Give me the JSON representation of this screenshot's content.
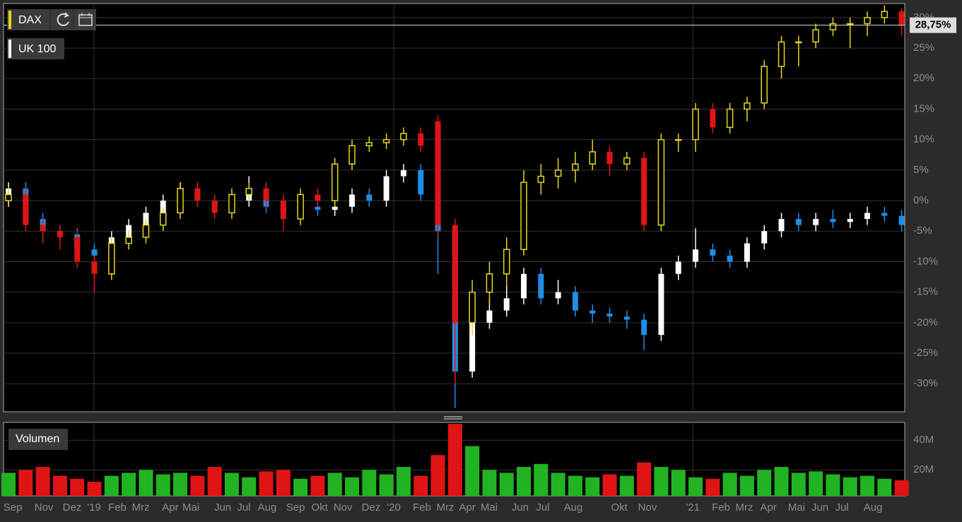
{
  "chart_data": {
    "type": "candlestick",
    "xlim": [
      -0.29,
      52.18
    ],
    "xticks": [
      {
        "value": 0.25,
        "label": "Sep"
      },
      {
        "value": 2.06,
        "label": "Nov"
      },
      {
        "value": 3.7,
        "label": "Dez"
      },
      {
        "value": 4.98,
        "label": "'19"
      },
      {
        "value": 6.34,
        "label": "Feb"
      },
      {
        "value": 7.7,
        "label": "Mrz"
      },
      {
        "value": 9.42,
        "label": "Apr"
      },
      {
        "value": 10.62,
        "label": "Mai"
      },
      {
        "value": 12.47,
        "label": "Jun"
      },
      {
        "value": 13.7,
        "label": "Jul"
      },
      {
        "value": 15.06,
        "label": "Aug"
      },
      {
        "value": 16.71,
        "label": "Sep"
      },
      {
        "value": 18.11,
        "label": "Okt"
      },
      {
        "value": 19.47,
        "label": "Nov"
      },
      {
        "value": 21.11,
        "label": "Dez"
      },
      {
        "value": 22.43,
        "label": "'20"
      },
      {
        "value": 24.07,
        "label": "Feb"
      },
      {
        "value": 25.43,
        "label": "Mrz"
      },
      {
        "value": 26.71,
        "label": "Apr"
      },
      {
        "value": 27.98,
        "label": "Mai"
      },
      {
        "value": 29.79,
        "label": "Jun"
      },
      {
        "value": 31.11,
        "label": "Jul"
      },
      {
        "value": 32.88,
        "label": "Aug"
      },
      {
        "value": 35.56,
        "label": "Okt"
      },
      {
        "value": 37.2,
        "label": "Nov"
      },
      {
        "value": 39.84,
        "label": "'21"
      },
      {
        "value": 41.48,
        "label": "Feb"
      },
      {
        "value": 42.84,
        "label": "Mrz"
      },
      {
        "value": 44.24,
        "label": "Apr"
      },
      {
        "value": 45.88,
        "label": "Mai"
      },
      {
        "value": 47.24,
        "label": "Jun"
      },
      {
        "value": 48.52,
        "label": "Jul"
      },
      {
        "value": 50.33,
        "label": "Aug"
      }
    ],
    "ylim": [
      -34.6,
      32.3
    ],
    "yticks": [
      {
        "value": -30,
        "label": "-30%"
      },
      {
        "value": -25,
        "label": "-25%"
      },
      {
        "value": -20,
        "label": "-20%"
      },
      {
        "value": -15,
        "label": "-15%"
      },
      {
        "value": -10,
        "label": "-10%"
      },
      {
        "value": -5,
        "label": "-5%"
      },
      {
        "value": 0,
        "label": "0%"
      },
      {
        "value": 5,
        "label": "5%"
      },
      {
        "value": 10,
        "label": "10%"
      },
      {
        "value": 15,
        "label": "15%"
      },
      {
        "value": 20,
        "label": "20%"
      },
      {
        "value": 25,
        "label": "25%"
      },
      {
        "value": 30,
        "label": "30%"
      }
    ],
    "grid": true,
    "series": [
      {
        "name": "UK 100",
        "color": "#ffffff",
        "up_color": "#ffffff",
        "down_color": "#1e8ee6",
        "open": [
          0,
          2,
          -3,
          -5,
          -5.5,
          -8,
          -9,
          -6,
          -4,
          -2,
          0,
          2,
          0,
          -1,
          0,
          2,
          -1,
          -2,
          -1,
          -1.5,
          -1,
          1,
          0,
          4,
          5,
          1,
          -5,
          -28,
          -20,
          -18,
          -16,
          -12,
          -16,
          -15,
          -18,
          -18.5,
          -19,
          -19.5,
          -22,
          -12,
          -10,
          -8,
          -9,
          -10,
          -7,
          -5,
          -3,
          -4,
          -3,
          -3.5,
          -3,
          -2,
          -2.5
        ],
        "high": [
          3,
          3,
          -2,
          -4,
          -4.5,
          -7,
          -5,
          -3,
          -1,
          1,
          3,
          3,
          1,
          1,
          4,
          3,
          0,
          0,
          0,
          -0.5,
          2,
          2,
          5,
          6,
          6,
          2,
          -4,
          -19,
          -16,
          -14,
          -11,
          -11,
          -13,
          -14,
          -17,
          -17.5,
          -18,
          -18.5,
          -11,
          -9,
          -4.5,
          -7,
          -8,
          -6,
          -4,
          -2,
          -2,
          -2,
          -1.5,
          -2,
          -1,
          -1,
          -1.5
        ],
        "low": [
          -1,
          -4,
          -6,
          -6.5,
          -9,
          -10,
          -10,
          -7,
          -5,
          -3,
          -1,
          -1,
          -2,
          -2,
          -1,
          -2,
          -3,
          -3,
          -2.5,
          -2.5,
          -2,
          -1,
          -1,
          3,
          0,
          -12,
          -34,
          -29,
          -21,
          -19,
          -17,
          -17,
          -17,
          -19,
          -20,
          -20,
          -21,
          -24.5,
          -23,
          -13,
          -11,
          -10,
          -11,
          -11,
          -8,
          -6,
          -5,
          -5,
          -4.5,
          -4.5,
          -4,
          -3.5,
          -5
        ],
        "close": [
          2,
          -3,
          -5,
          -5.5,
          -8,
          -9,
          -6,
          -4,
          -2,
          0,
          2,
          0,
          -1,
          0,
          2,
          -1,
          -2,
          -1,
          -1.5,
          -1,
          1,
          0,
          4,
          5,
          1,
          -5,
          -28,
          -20,
          -18,
          -16,
          -12,
          -16,
          -15,
          -18,
          -18.5,
          -19,
          -19.5,
          -22,
          -12,
          -10,
          -8,
          -9,
          -10,
          -7,
          -5,
          -3,
          -4,
          -3,
          -3.5,
          -3,
          -2,
          -2.5,
          -4
        ]
      },
      {
        "name": "DAX",
        "color": "#e6d619",
        "up_color": "#e6d619",
        "down_color": "#e01414",
        "last_value_label": "28,75%",
        "open": [
          0,
          1,
          -4,
          -5,
          -6,
          -10,
          -12,
          -7,
          -6,
          -4,
          -2,
          2,
          0,
          -2,
          1,
          2,
          0,
          -3,
          1,
          0,
          6,
          9,
          9.5,
          10,
          11,
          13,
          -4,
          -20,
          -15,
          -12,
          -8,
          3,
          4,
          5,
          6,
          8,
          6,
          7,
          -4,
          10,
          10,
          15,
          12,
          15,
          16,
          22,
          26,
          26,
          28,
          29,
          29,
          30,
          31
        ],
        "high": [
          2.5,
          2,
          -3,
          -4,
          -5,
          -9,
          -6,
          -5,
          -3,
          -1,
          3,
          3,
          1,
          2,
          3,
          3,
          1,
          2,
          2,
          7,
          10,
          10.5,
          11,
          12,
          12,
          14,
          -3,
          -13,
          -10,
          -6,
          5,
          6,
          7,
          8,
          10,
          9,
          8,
          8,
          11,
          11,
          16,
          16,
          16,
          17,
          23,
          27,
          27,
          29,
          30,
          30,
          31,
          32,
          31.5
        ],
        "low": [
          -1,
          -5,
          -7,
          -8,
          -11,
          -15,
          -13,
          -8,
          -7,
          -5,
          -3,
          -1,
          -3,
          -3,
          0,
          -1,
          -5,
          -4,
          -1,
          -1,
          5,
          8,
          8.5,
          9,
          8,
          -6,
          -30,
          -22,
          -17,
          -14,
          -9,
          1,
          2,
          3,
          5,
          4,
          5,
          -5,
          -5,
          8,
          8,
          11,
          11,
          13,
          15,
          20,
          22,
          25,
          27,
          25,
          27,
          29,
          27
        ],
        "close": [
          1,
          -4,
          -5,
          -6,
          -10,
          -12,
          -7,
          -6,
          -4,
          -2,
          2,
          0,
          -2,
          1,
          2,
          0,
          -3,
          1,
          0,
          6,
          9,
          9.5,
          10,
          11,
          9,
          -4,
          -20,
          -15,
          -12,
          -8,
          3,
          4,
          5,
          6,
          8,
          6,
          7,
          -4,
          10,
          10,
          15,
          12,
          15,
          16,
          22,
          26,
          26,
          28,
          29,
          29,
          30,
          31,
          28.75
        ]
      }
    ],
    "volume": {
      "name": "Volumen",
      "type": "bar",
      "up_color": "#22b322",
      "down_color": "#e01414",
      "values": [
        18000000,
        20000000,
        22000000,
        16000000,
        14000000,
        12000000,
        16000000,
        18000000,
        20000000,
        17000000,
        18000000,
        16000000,
        22000000,
        18000000,
        15000000,
        19000000,
        20000000,
        14000000,
        16000000,
        18000000,
        15000000,
        20000000,
        17000000,
        22000000,
        16000000,
        30000000,
        51000000,
        36000000,
        20000000,
        18000000,
        22000000,
        24000000,
        18000000,
        16000000,
        15000000,
        17000000,
        16000000,
        25000000,
        22000000,
        20000000,
        15000000,
        14000000,
        18000000,
        16000000,
        20000000,
        22000000,
        18000000,
        19000000,
        17000000,
        15000000,
        16000000,
        14000000,
        13000000
      ],
      "ylim": [
        2500000,
        52000000
      ],
      "yticks": [
        {
          "value": 20000000,
          "label": "20M"
        },
        {
          "value": 40000000,
          "label": "40M"
        }
      ]
    }
  }
}
